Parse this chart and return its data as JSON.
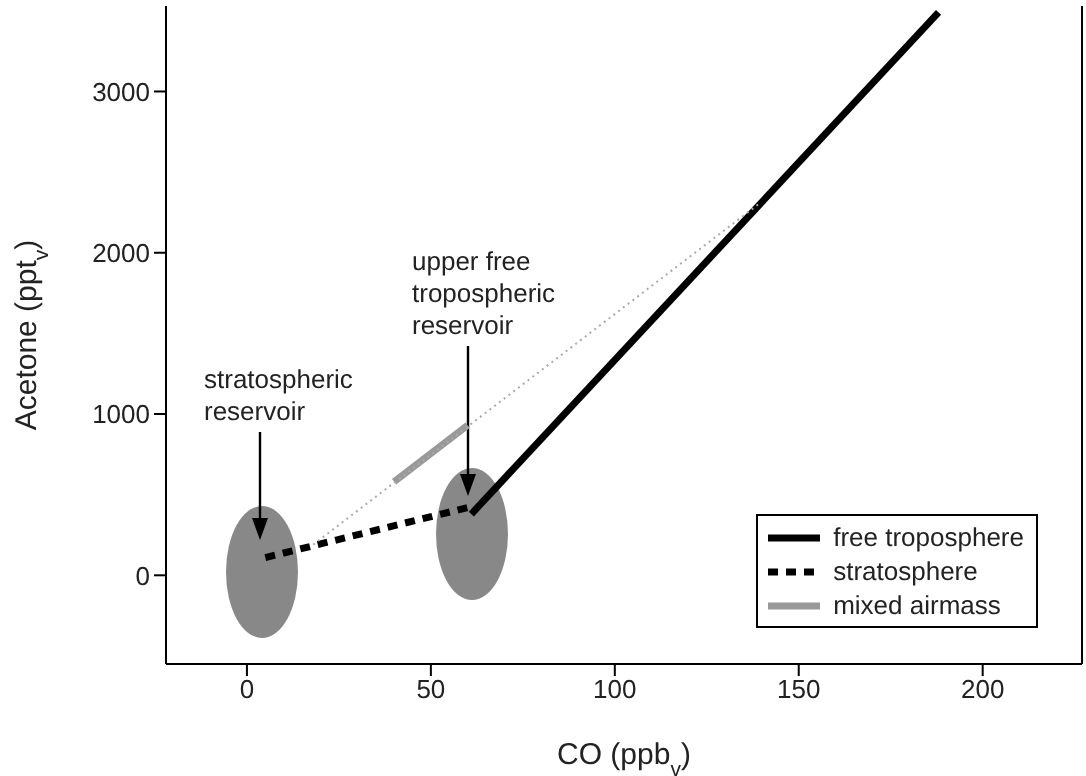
{
  "chart_data": {
    "type": "line",
    "xlabel": "CO (ppb$_{v}$)",
    "ylabel": "Acetone (ppt$_{v}$)",
    "xlim": [
      -22,
      227
    ],
    "xticks": [
      0,
      50,
      100,
      150,
      200
    ],
    "ylim": [
      -550,
      3530
    ],
    "yticks": [
      0,
      1000,
      2000,
      3000
    ],
    "grid": false,
    "legend": "bottom right",
    "marker": "none",
    "series": [
      {
        "name": "free troposphere",
        "color": "#000000",
        "line_style": "solid",
        "x": [
          61,
          188
        ],
        "values": [
          380,
          3490
        ]
      },
      {
        "name": "stratosphere",
        "color": "#000000",
        "line_style": "dashed",
        "x": [
          5,
          60
        ],
        "values": [
          110,
          420
        ]
      },
      {
        "name": "mixed airmass",
        "color": "#999999",
        "line_style": "solid",
        "x": [
          40,
          60
        ],
        "values": [
          580,
          930
        ]
      },
      {
        "color": "#aaaaaa",
        "line_style": "dotted",
        "x": [
          18,
          139
        ],
        "values": [
          190,
          2300
        ]
      }
    ],
    "annotations": [
      "stratospheric reservoir",
      "upper free tropospheric reservoir"
    ]
  }
}
